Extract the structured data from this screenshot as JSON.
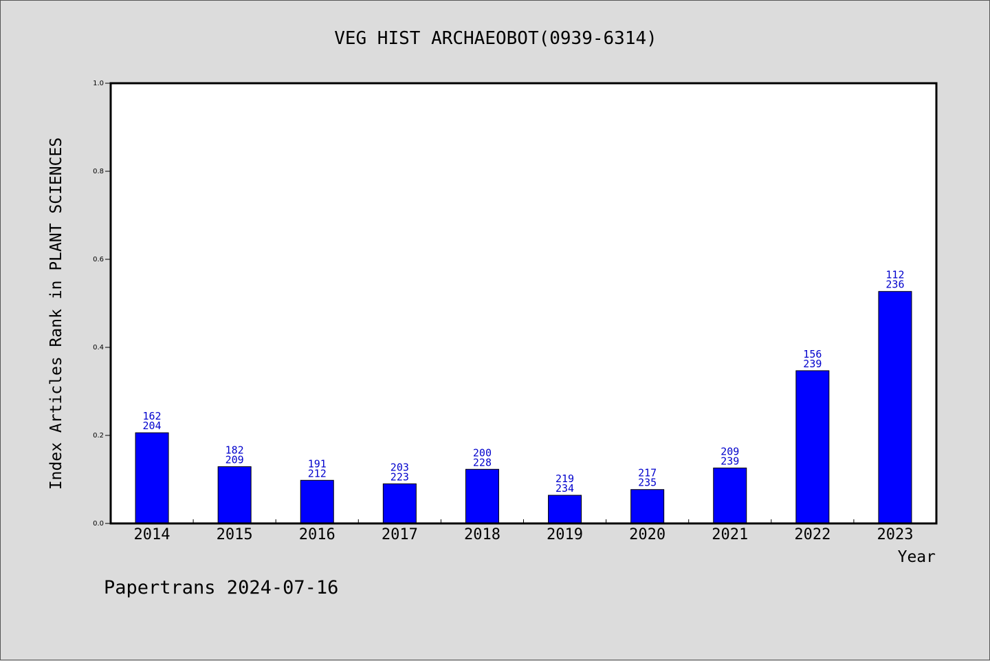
{
  "chart_data": {
    "type": "bar",
    "title": "VEG HIST ARCHAEOBOT(0939-6314)",
    "ylabel": "Index Articles Rank in PLANT SCIENCES",
    "xlabel": "Year",
    "ylim": [
      0,
      1.0
    ],
    "y_ticks": [
      "0.0",
      "0.2",
      "0.4",
      "0.6",
      "0.8",
      "1.0"
    ],
    "y_tick_values": [
      0,
      0.2,
      0.4,
      0.6,
      0.8,
      1.0
    ],
    "categories": [
      "2014",
      "2015",
      "2016",
      "2017",
      "2018",
      "2019",
      "2020",
      "2021",
      "2022",
      "2023"
    ],
    "values": [
      0.206,
      0.129,
      0.098,
      0.09,
      0.123,
      0.064,
      0.077,
      0.126,
      0.347,
      0.527
    ],
    "rank": [
      "162",
      "182",
      "191",
      "203",
      "200",
      "219",
      "217",
      "209",
      "156",
      "112"
    ],
    "total": [
      "204",
      "209",
      "212",
      "223",
      "228",
      "234",
      "235",
      "239",
      "239",
      "236"
    ],
    "bar_color": "#0000ff",
    "label_color": "#0000cc",
    "grid": false
  },
  "footer": "Papertrans 2024-07-16"
}
